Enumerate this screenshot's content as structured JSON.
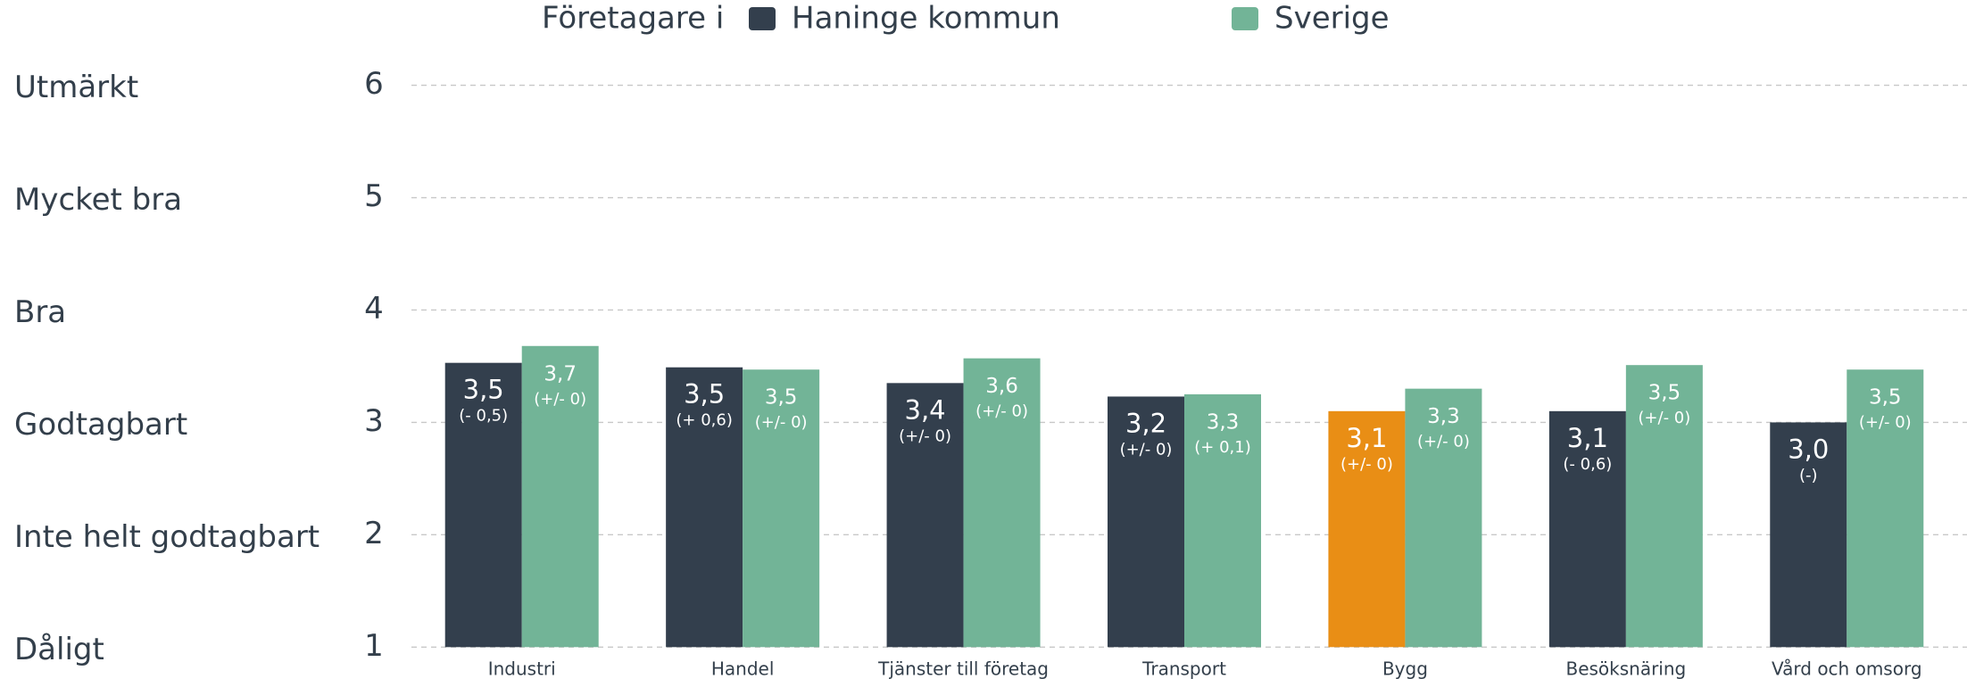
{
  "chart_data": {
    "type": "bar",
    "legend_title": "Företagare i",
    "categories": [
      "Industri",
      "Handel",
      "Tjänster till företag",
      "Transport",
      "Bygg",
      "Besöksnäring",
      "Vård och omsorg"
    ],
    "series": [
      {
        "name": "Haninge kommun",
        "color": "#333f4d",
        "colors": [
          "#333f4d",
          "#333f4d",
          "#333f4d",
          "#333f4d",
          "#e98e15",
          "#333f4d",
          "#333f4d"
        ],
        "values": [
          3.53,
          3.49,
          3.35,
          3.23,
          3.1,
          3.1,
          3.0
        ],
        "value_labels": [
          "3,5",
          "3,5",
          "3,4",
          "3,2",
          "3,1",
          "3,1",
          "3,0"
        ],
        "change_labels": [
          "(- 0,5)",
          "(+ 0,6)",
          "(+/- 0)",
          "(+/- 0)",
          "(+/- 0)",
          "(- 0,6)",
          "(-)"
        ]
      },
      {
        "name": "Sverige",
        "color": "#72b497",
        "values": [
          3.68,
          3.47,
          3.57,
          3.25,
          3.3,
          3.51,
          3.47
        ],
        "value_labels": [
          "3,7",
          "3,5",
          "3,6",
          "3,3",
          "3,3",
          "3,5",
          "3,5"
        ],
        "change_labels": [
          "(+/- 0)",
          "(+/- 0)",
          "(+/- 0)",
          "(+ 0,1)",
          "(+/- 0)",
          "(+/- 0)",
          "(+/- 0)"
        ]
      }
    ],
    "ylim": [
      1,
      6
    ],
    "yticks": [
      1,
      2,
      3,
      4,
      5,
      6
    ],
    "ytick_descriptions": [
      "Dåligt",
      "Inte helt godtagbart",
      "Godtagbart",
      "Bra",
      "Mycket bra",
      "Utmärkt"
    ],
    "grid": true
  }
}
